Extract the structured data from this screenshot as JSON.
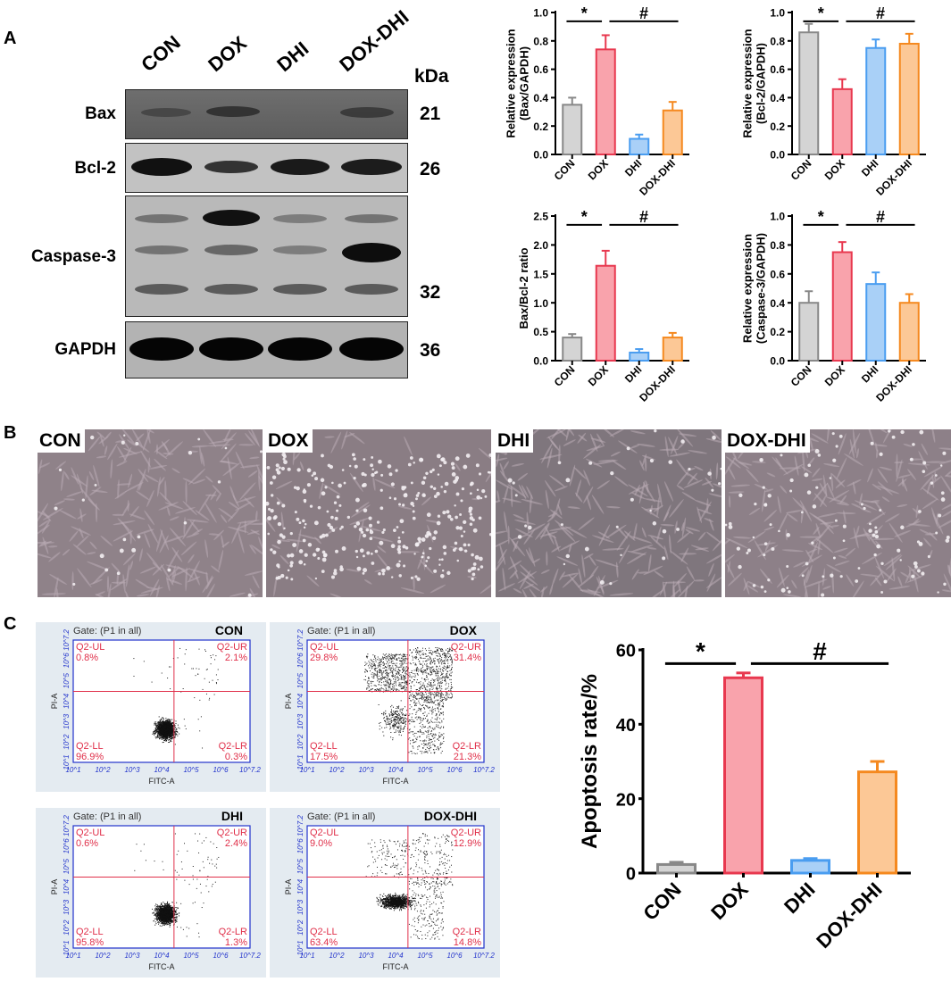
{
  "panels": {
    "a": "A",
    "b": "B",
    "c": "C"
  },
  "blot": {
    "lanes": [
      "CON",
      "DOX",
      "DHI",
      "DOX-DHI"
    ],
    "kda_unit": "kDa",
    "rows": [
      {
        "name": "Bax",
        "kda": [
          "21"
        ]
      },
      {
        "name": "Bcl-2",
        "kda": [
          "26"
        ]
      },
      {
        "name": "Caspase-3",
        "kda": [
          "32"
        ]
      },
      {
        "name": "GAPDH",
        "kda": [
          "36"
        ]
      }
    ]
  },
  "microscopy": {
    "labels": [
      "CON",
      "DOX",
      "DHI",
      "DOX-DHI"
    ]
  },
  "flow": {
    "x_axis": "FITC-A",
    "y_axis": "PI-A",
    "gate": "Gate: (P1 in all)",
    "quadrant_names": {
      "ul": "Q2-UL",
      "ur": "Q2-UR",
      "ll": "Q2-LL",
      "lr": "Q2-LR"
    },
    "ticks": [
      "10^1",
      "10^2",
      "10^3",
      "10^4",
      "10^5",
      "10^6",
      "10^7.2"
    ],
    "plots": [
      {
        "title": "CON",
        "ul": "0.8%",
        "ur": "2.1%",
        "ll": "96.9%",
        "lr": "0.3%"
      },
      {
        "title": "DOX",
        "ul": "29.8%",
        "ur": "31.4%",
        "ll": "17.5%",
        "lr": "21.3%"
      },
      {
        "title": "DHI",
        "ul": "0.6%",
        "ur": "2.4%",
        "ll": "95.8%",
        "lr": "1.3%"
      },
      {
        "title": "DOX-DHI",
        "ul": "9.0%",
        "ur": "12.9%",
        "ll": "63.4%",
        "lr": "14.8%"
      }
    ]
  },
  "colors": {
    "CON": "#888888",
    "DOX": "#e8384f",
    "DHI": "#4a9df0",
    "DOX-DHI": "#f5891f",
    "CON_fill": "#d4d4d4",
    "DOX_fill": "#f9a3ac",
    "DHI_fill": "#a9d0f7",
    "DOX-DHI_fill": "#fcc896"
  },
  "chart_data": [
    {
      "type": "bar",
      "categories": [
        "CON",
        "DOX",
        "DHI",
        "DOX-DHI"
      ],
      "values": [
        0.35,
        0.74,
        0.11,
        0.31
      ],
      "errors": [
        0.05,
        0.1,
        0.03,
        0.06
      ],
      "ylabel": "Relative expression\n(Bax/GAPDH)",
      "ylim": [
        0,
        1.0
      ],
      "yticks": [
        "0.0",
        "0.2",
        "0.4",
        "0.6",
        "0.8",
        "1.0"
      ],
      "sig": [
        {
          "from": 0,
          "to": 1,
          "text": "*"
        },
        {
          "from": 1,
          "to": 3,
          "text": "#"
        }
      ]
    },
    {
      "type": "bar",
      "categories": [
        "CON",
        "DOX",
        "DHI",
        "DOX-DHI"
      ],
      "values": [
        0.86,
        0.46,
        0.75,
        0.78
      ],
      "errors": [
        0.06,
        0.07,
        0.06,
        0.07
      ],
      "ylabel": "Relative expression\n(Bcl-2/GAPDH)",
      "ylim": [
        0,
        1.0
      ],
      "yticks": [
        "0.0",
        "0.2",
        "0.4",
        "0.6",
        "0.8",
        "1.0"
      ],
      "sig": [
        {
          "from": 0,
          "to": 1,
          "text": "*"
        },
        {
          "from": 1,
          "to": 3,
          "text": "#"
        }
      ]
    },
    {
      "type": "bar",
      "categories": [
        "CON",
        "DOX",
        "DHI",
        "DOX-DHI"
      ],
      "values": [
        0.4,
        1.64,
        0.14,
        0.4
      ],
      "errors": [
        0.06,
        0.26,
        0.06,
        0.08
      ],
      "ylabel": "Bax/Bcl-2 ratio",
      "ylim": [
        0,
        2.5
      ],
      "yticks": [
        "0.0",
        "0.5",
        "1.0",
        "1.5",
        "2.0",
        "2.5"
      ],
      "sig": [
        {
          "from": 0,
          "to": 1,
          "text": "*"
        },
        {
          "from": 1,
          "to": 3,
          "text": "#"
        }
      ]
    },
    {
      "type": "bar",
      "categories": [
        "CON",
        "DOX",
        "DHI",
        "DOX-DHI"
      ],
      "values": [
        0.4,
        0.75,
        0.53,
        0.4
      ],
      "errors": [
        0.08,
        0.07,
        0.08,
        0.06
      ],
      "ylabel": "Relative expression\n(Caspase-3/GAPDH)",
      "ylim": [
        0,
        1.0
      ],
      "yticks": [
        "0.0",
        "0.2",
        "0.4",
        "0.6",
        "0.8",
        "1.0"
      ],
      "sig": [
        {
          "from": 0,
          "to": 1,
          "text": "*"
        },
        {
          "from": 1,
          "to": 3,
          "text": "#"
        }
      ]
    },
    {
      "type": "bar",
      "categories": [
        "CON",
        "DOX",
        "DHI",
        "DOX-DHI"
      ],
      "values": [
        2.3,
        52.5,
        3.4,
        27.2
      ],
      "errors": [
        0.6,
        1.3,
        0.5,
        2.8
      ],
      "ylabel": "Apoptosis rate/%",
      "ylim": [
        0,
        60
      ],
      "yticks": [
        "0",
        "20",
        "40",
        "60"
      ],
      "sig": [
        {
          "from": 0,
          "to": 1,
          "text": "*"
        },
        {
          "from": 1,
          "to": 3,
          "text": "#"
        }
      ]
    }
  ]
}
